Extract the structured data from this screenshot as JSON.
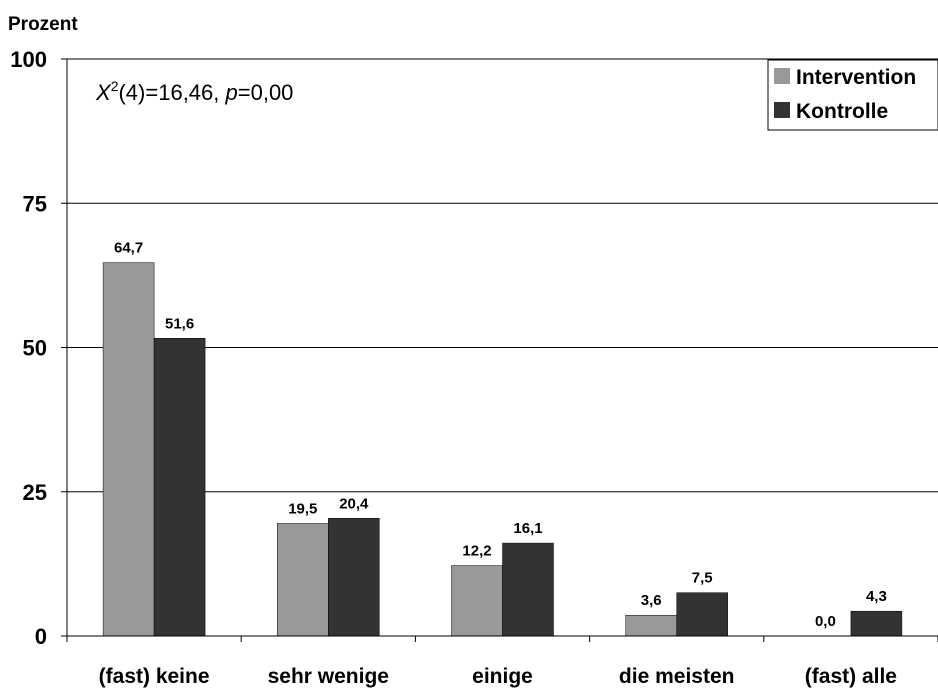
{
  "chart_data": {
    "type": "bar",
    "ylabel": "Prozent",
    "annotation": {
      "chi_symbol": "X",
      "chi_sup": "2",
      "chi_rest": "(4)=16,46, ",
      "p_symbol": "p",
      "p_rest": "=0,00"
    },
    "categories": [
      "(fast) keine",
      "sehr wenige",
      "einige",
      "die meisten",
      "(fast) alle"
    ],
    "series": [
      {
        "name": "Intervention",
        "color": "#999999",
        "values": [
          64.7,
          19.5,
          12.2,
          3.6,
          0.0
        ],
        "labels": [
          "64,7",
          "19,5",
          "12,2",
          "3,6",
          "0,0"
        ]
      },
      {
        "name": "Kontrolle",
        "color": "#333333",
        "values": [
          51.6,
          20.4,
          16.1,
          7.5,
          4.3
        ],
        "labels": [
          "51,6",
          "20,4",
          "16,1",
          "7,5",
          "4,3"
        ]
      }
    ],
    "ylim": [
      0,
      100
    ],
    "yticks": [
      0,
      25,
      50,
      75,
      100
    ],
    "grid": true,
    "legend_position": "top-right"
  }
}
